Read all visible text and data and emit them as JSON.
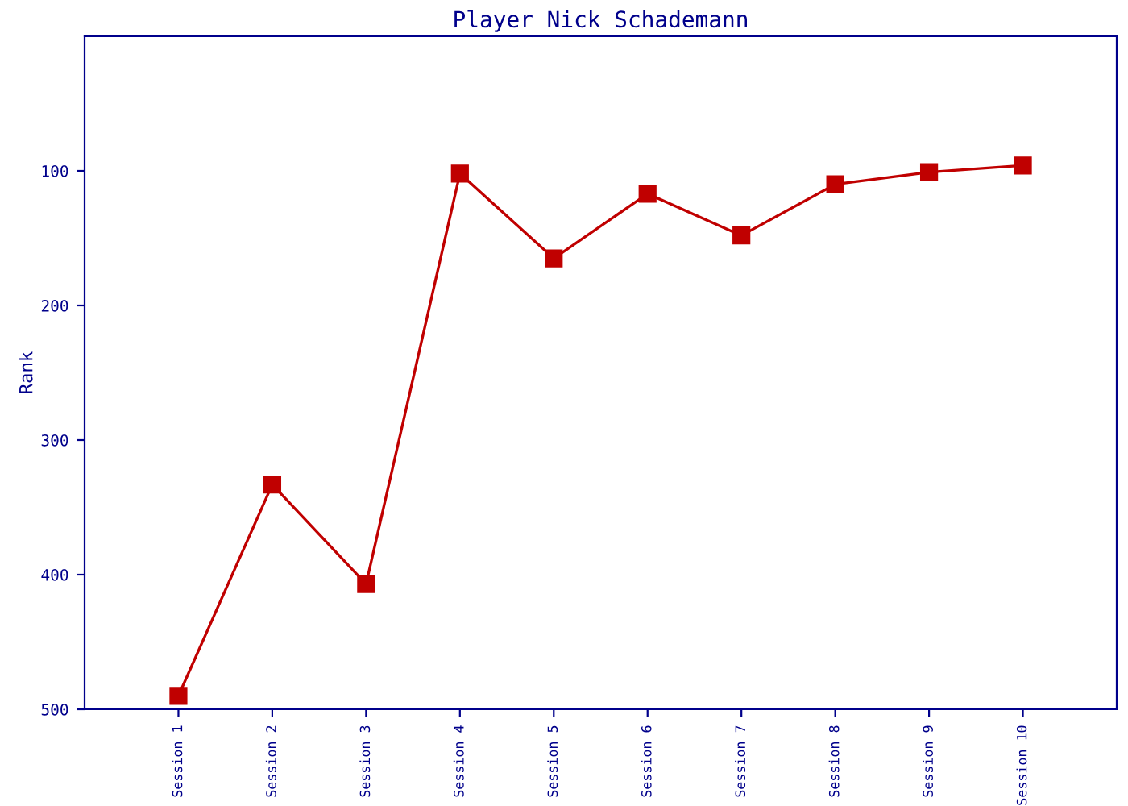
{
  "chart_data": {
    "type": "line",
    "title": "Player Nick Schademann",
    "ylabel": "Rank",
    "categories": [
      "Session 1",
      "Session 2",
      "Session 3",
      "Session 4",
      "Session 5",
      "Session 6",
      "Session 7",
      "Session 8",
      "Session 9",
      "Session 10"
    ],
    "series": [
      {
        "color": "#c00000",
        "values": [
          490,
          333,
          407,
          102,
          165,
          117,
          148,
          110,
          101,
          96
        ]
      }
    ],
    "ylim": [
      500,
      0
    ],
    "yticks": [
      100,
      200,
      300,
      400,
      500
    ],
    "grid": false,
    "legend": false,
    "marker": "square",
    "line_style": "solid"
  }
}
